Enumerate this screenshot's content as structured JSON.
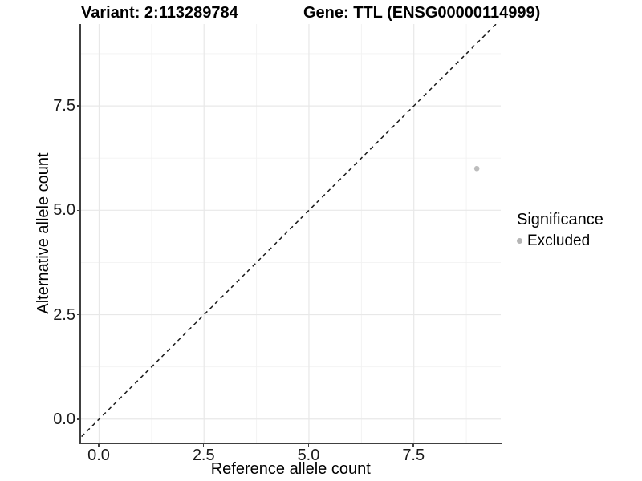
{
  "chart_data": {
    "type": "scatter",
    "titles": {
      "variant": "Variant: 2:113289784",
      "gene": "Gene: TTL (ENSG00000114999)"
    },
    "xlabel": "Reference allele count",
    "ylabel": "Alternative allele count",
    "xlim": [
      -0.43,
      9.58
    ],
    "ylim": [
      -0.58,
      9.46
    ],
    "x_ticks": {
      "values": [
        0,
        2.5,
        5,
        7.5
      ],
      "labels": [
        "0.0",
        "2.5",
        "5.0",
        "7.5"
      ]
    },
    "y_ticks": {
      "values": [
        0,
        2.5,
        5,
        7.5
      ],
      "labels": [
        "0.0",
        "2.5",
        "5.0",
        "7.5"
      ]
    },
    "x_minor": [
      1.25,
      3.75,
      6.25,
      8.75
    ],
    "y_minor": [
      1.25,
      3.75,
      6.25,
      8.75
    ],
    "reference_line": {
      "type": "identity y=x",
      "style": "dashed",
      "color": "#1a1a1a"
    },
    "series": [
      {
        "name": "Excluded",
        "color": "#bdbdbd",
        "points": [
          {
            "x": 9,
            "y": 6
          }
        ]
      }
    ],
    "legend": {
      "title": "Significance",
      "position": "right",
      "items": [
        {
          "label": "Excluded",
          "color": "#b5b5b5"
        }
      ]
    },
    "grid": {
      "major": true,
      "minor": true
    },
    "colors": {
      "point": "#bdbdbd",
      "grid_major": "#e8e8e8",
      "grid_minor": "#f2f2f2",
      "axis": "#404040",
      "ref_line": "#1a1a1a"
    }
  }
}
